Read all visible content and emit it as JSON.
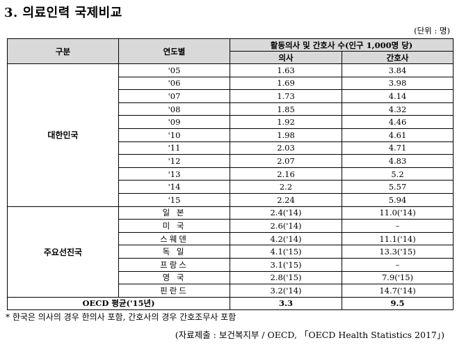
{
  "title": "3. 의료인력 국제비교",
  "unit": "(단위 : 명)",
  "header": {
    "col_group": "구분",
    "col_year": "연도별",
    "col_span": "활동의사 및 간호사 수(인구 1,000명 당)",
    "col_doctor": "의사",
    "col_nurse": "간호사"
  },
  "korea": {
    "label": "대한민국",
    "rows": [
      {
        "year": "'05",
        "doctor": "1.63",
        "nurse": "3.84"
      },
      {
        "year": "'06",
        "doctor": "1.69",
        "nurse": "3.98"
      },
      {
        "year": "'07",
        "doctor": "1.73",
        "nurse": "4.14"
      },
      {
        "year": "'08",
        "doctor": "1.85",
        "nurse": "4.32"
      },
      {
        "year": "'09",
        "doctor": "1.92",
        "nurse": "4.46"
      },
      {
        "year": "'10",
        "doctor": "1.98",
        "nurse": "4.61"
      },
      {
        "year": "'11",
        "doctor": "2.03",
        "nurse": "4.71"
      },
      {
        "year": "'12",
        "doctor": "2.07",
        "nurse": "4.83"
      },
      {
        "year": "'13",
        "doctor": "2.16",
        "nurse": "5.2"
      },
      {
        "year": "'14",
        "doctor": "2.2",
        "nurse": "5.57"
      },
      {
        "year": "'15",
        "doctor": "2.24",
        "nurse": "5.94"
      }
    ]
  },
  "major": {
    "label": "주요선진국",
    "rows": [
      {
        "country": "일 본",
        "doctor": "2.4('14)",
        "nurse": "11.0('14)"
      },
      {
        "country": "미 국",
        "doctor": "2.6('14)",
        "nurse": "–"
      },
      {
        "country": "스웨덴",
        "doctor": "4.2('14)",
        "nurse": "11.1('14)"
      },
      {
        "country": "독 일",
        "doctor": "4.1('15)",
        "nurse": "13.3('15)"
      },
      {
        "country": "프랑스",
        "doctor": "3.1('15)",
        "nurse": "–"
      },
      {
        "country": "영 국",
        "doctor": "2.8('15)",
        "nurse": "7.9('15)"
      },
      {
        "country": "핀란드",
        "doctor": "3.2('14)",
        "nurse": "14.7('14)"
      }
    ]
  },
  "oecd": {
    "label": "OECD 평균('15년)",
    "doctor": "3.3",
    "nurse": "9.5"
  },
  "note": "* 한국은 의사의 경우 한의사 포함, 간호사의 경우 간호조무사 포함",
  "source": "(자료제출 : 보건복지부 / OECD, 「OECD Health Statistics 2017」)"
}
